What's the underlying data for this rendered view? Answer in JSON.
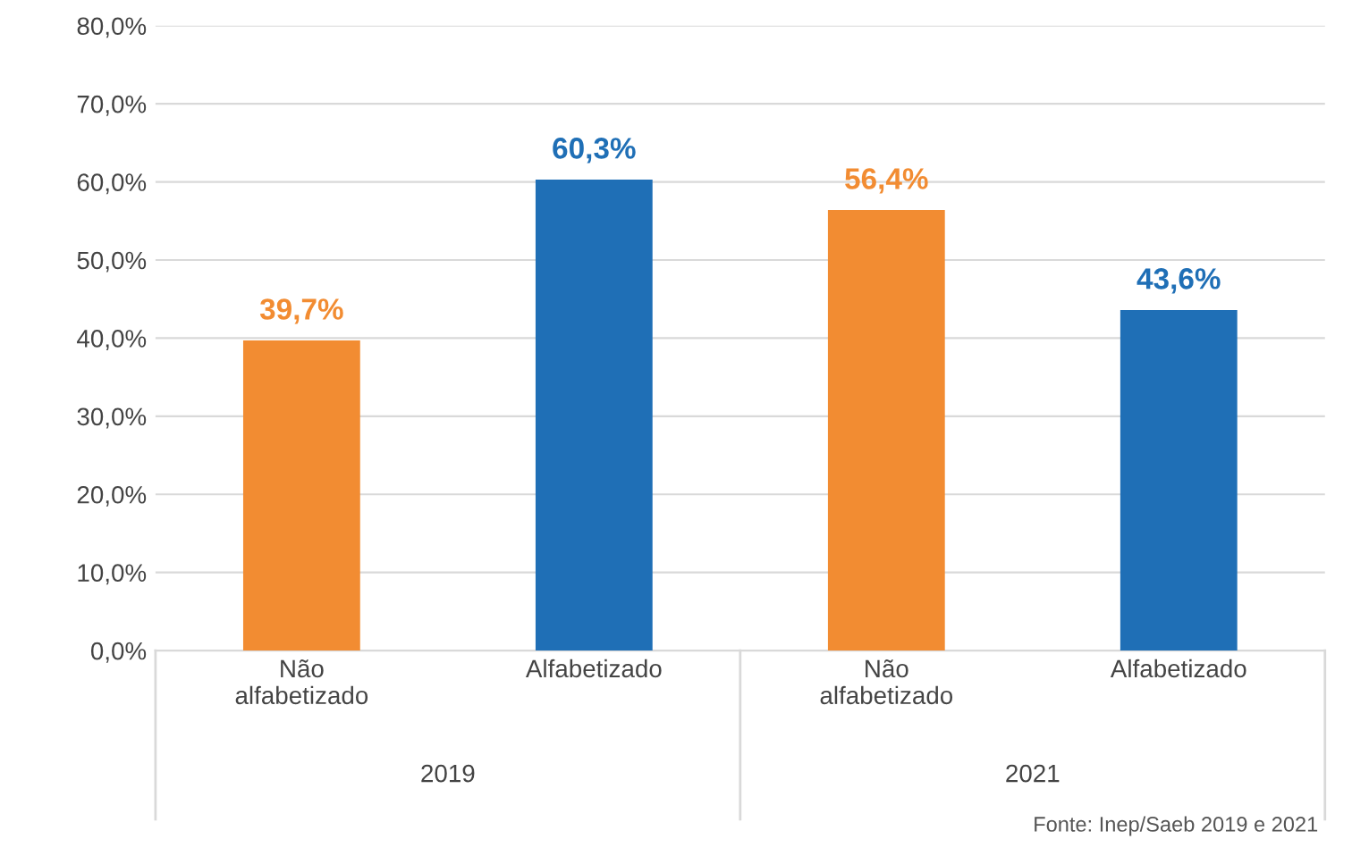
{
  "chart_data": {
    "type": "bar",
    "categories": [
      "Não\nalfabetizado",
      "Alfabetizado",
      "Não\nalfabetizado",
      "Alfabetizado"
    ],
    "values": [
      39.7,
      60.3,
      56.4,
      43.6
    ],
    "colors": [
      "#f28c32",
      "#1f6fb6",
      "#f28c32",
      "#1f6fb6"
    ],
    "value_labels": [
      "39,7%",
      "60,3%",
      "56,4%",
      "43,6%"
    ],
    "ylim": [
      0,
      80
    ],
    "yticks": [
      {
        "value": 0,
        "label": "0,0%"
      },
      {
        "value": 10,
        "label": "10,0%"
      },
      {
        "value": 20,
        "label": "20,0%"
      },
      {
        "value": 30,
        "label": "30,0%"
      },
      {
        "value": 40,
        "label": "40,0%"
      },
      {
        "value": 50,
        "label": "50,0%"
      },
      {
        "value": 60,
        "label": "60,0%"
      },
      {
        "value": 70,
        "label": "70,0%"
      },
      {
        "value": 80,
        "label": "80,0%"
      }
    ],
    "grid": "y",
    "annotations": [
      "2019",
      "2021",
      "Fonte: Inep/Saeb 2019 e 2021"
    ]
  }
}
